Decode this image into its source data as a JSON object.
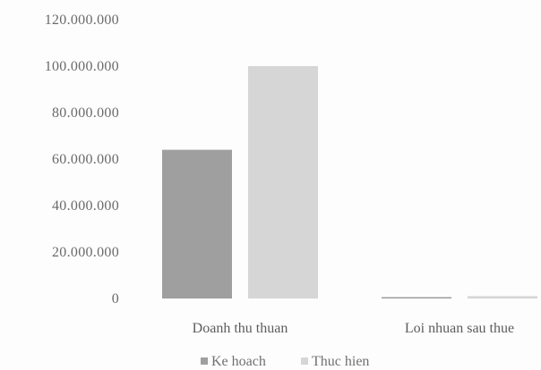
{
  "chart_data": {
    "type": "bar",
    "title": "",
    "xlabel": "",
    "ylabel": "",
    "categories": [
      "Doanh thu thuan",
      "Loi nhuan sau thue"
    ],
    "series": [
      {
        "name": "Ke hoach",
        "values": [
          64000000,
          600000
        ]
      },
      {
        "name": "Thuc hien",
        "values": [
          100000000,
          1000000
        ]
      }
    ],
    "ylim": [
      0,
      120000000
    ],
    "yticks": [
      0,
      20000000,
      40000000,
      60000000,
      80000000,
      100000000,
      120000000
    ],
    "ytick_labels": [
      "0",
      "20.000.000",
      "40.000.000",
      "60.000.000",
      "80.000.000",
      "100.000.000",
      "120.000.000"
    ],
    "grid": false,
    "legend_position": "bottom",
    "colors": {
      "Ke hoach": "#9f9f9f",
      "Thuc hien": "#d6d6d6"
    }
  }
}
